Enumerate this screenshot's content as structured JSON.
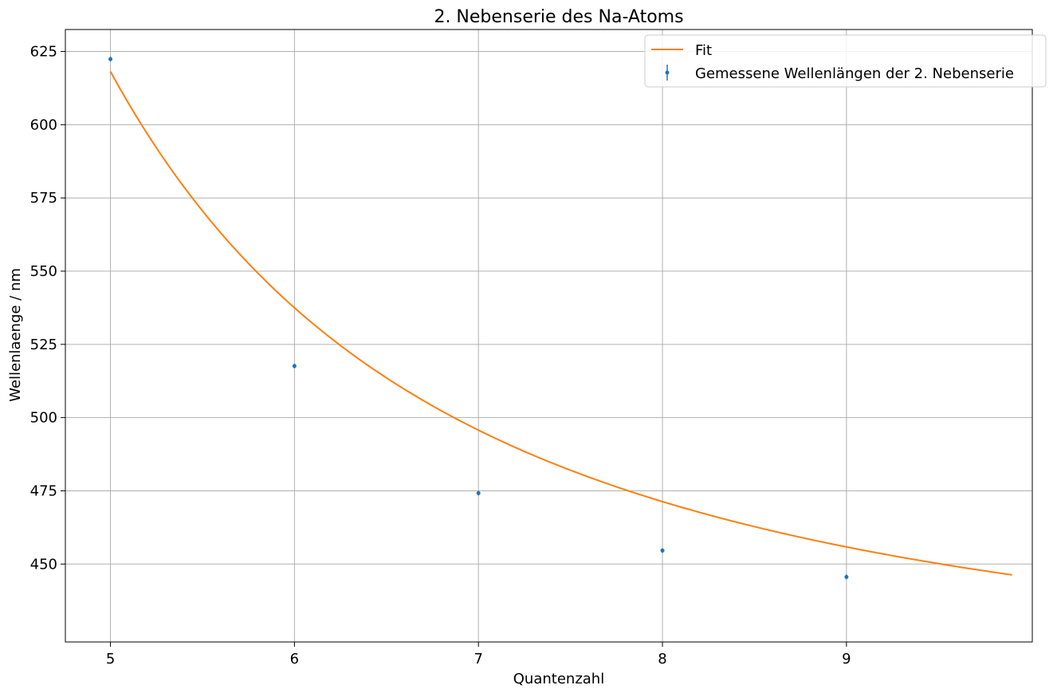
{
  "chart_data": {
    "type": "scatter",
    "title": "2. Nebenserie des Na-Atoms",
    "xlabel": "Quantenzahl",
    "ylabel": "Wellenlaenge / nm",
    "xlim": [
      4.755,
      10.01
    ],
    "ylim": [
      423.4,
      632.5
    ],
    "xticks": [
      5,
      6,
      7,
      8,
      9
    ],
    "yticks": [
      450,
      475,
      500,
      525,
      550,
      575,
      600,
      625
    ],
    "grid": true,
    "legend_position": "top-right",
    "series": [
      {
        "name": "Fit",
        "kind": "line",
        "color": "#ff7f0e",
        "model": {
          "lambda_inf": 408.0,
          "k": 28.0,
          "delta": 1.35
        },
        "x_range": [
          5,
          9.9
        ]
      },
      {
        "name": "Gemessene Wellenlängen der 2. Nebenserie",
        "kind": "errorbar",
        "color": "#1f77b4",
        "x": [
          5,
          6,
          7,
          8,
          9
        ],
        "y": [
          622.4,
          517.6,
          474.2,
          454.6,
          445.6
        ],
        "yerr": [
          0.8,
          0.8,
          0.8,
          0.8,
          0.8
        ]
      }
    ]
  }
}
